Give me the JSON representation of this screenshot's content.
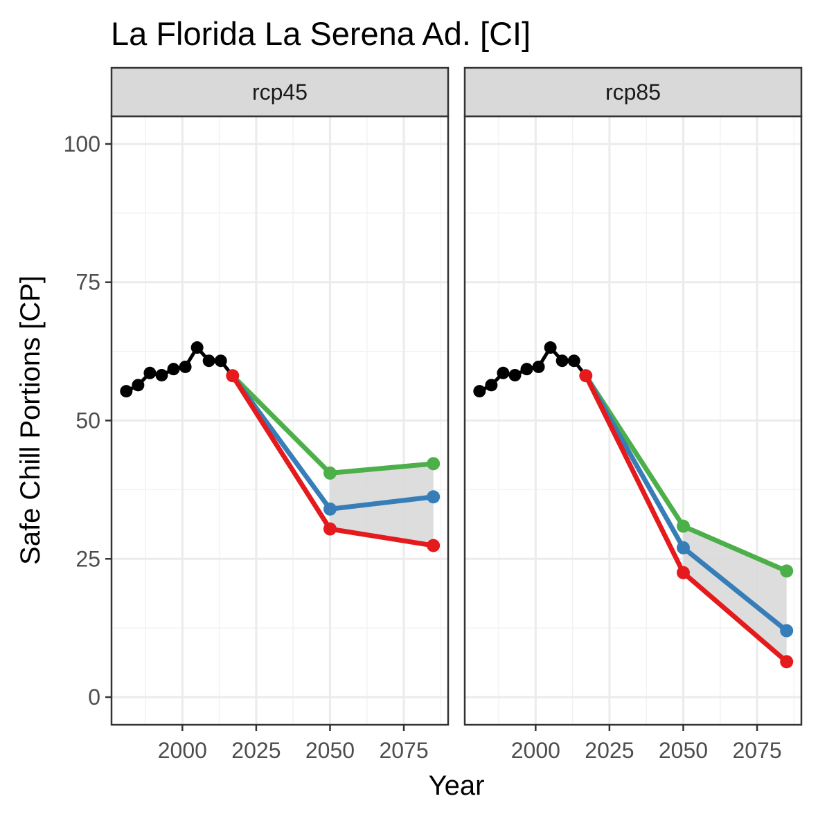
{
  "chart_data": {
    "type": "line",
    "title": "La Florida La Serena Ad. [CI]",
    "xlabel": "Year",
    "ylabel": "Safe Chill Portions [CP]",
    "xlim": [
      1976,
      2090
    ],
    "ylim": [
      -5,
      105
    ],
    "xticks": [
      2000,
      2025,
      2050,
      2075
    ],
    "yticks": [
      0,
      25,
      50,
      75,
      100
    ],
    "grid": true,
    "legend": "none",
    "colors": {
      "historic": "#000000",
      "green": "#4daf4a",
      "blue": "#377eb8",
      "red": "#e41a1c",
      "ribbon": "#d9d9d9"
    },
    "panels": [
      {
        "label": "rcp45",
        "historic": {
          "x": [
            1981,
            1985,
            1989,
            1993,
            1997,
            2001,
            2005,
            2009,
            2013,
            2017
          ],
          "y": [
            55.3,
            56.4,
            58.6,
            58.2,
            59.3,
            59.7,
            63.2,
            60.8,
            60.8,
            58.1
          ]
        },
        "future": [
          {
            "color": "green",
            "x": [
              2017,
              2050,
              2085
            ],
            "y": [
              58.1,
              40.5,
              42.2
            ]
          },
          {
            "color": "blue",
            "x": [
              2017,
              2050,
              2085
            ],
            "y": [
              58.1,
              34.0,
              36.2
            ]
          },
          {
            "color": "red",
            "x": [
              2017,
              2050,
              2085
            ],
            "y": [
              58.1,
              30.4,
              27.4
            ]
          }
        ]
      },
      {
        "label": "rcp85",
        "historic": {
          "x": [
            1981,
            1985,
            1989,
            1993,
            1997,
            2001,
            2005,
            2009,
            2013,
            2017
          ],
          "y": [
            55.3,
            56.4,
            58.6,
            58.2,
            59.3,
            59.7,
            63.2,
            60.8,
            60.8,
            58.1
          ]
        },
        "future": [
          {
            "color": "green",
            "x": [
              2017,
              2050,
              2085
            ],
            "y": [
              58.1,
              30.9,
              22.8
            ]
          },
          {
            "color": "blue",
            "x": [
              2017,
              2050,
              2085
            ],
            "y": [
              58.1,
              27.0,
              12.0
            ]
          },
          {
            "color": "red",
            "x": [
              2017,
              2050,
              2085
            ],
            "y": [
              58.1,
              22.5,
              6.4
            ]
          }
        ]
      }
    ]
  }
}
